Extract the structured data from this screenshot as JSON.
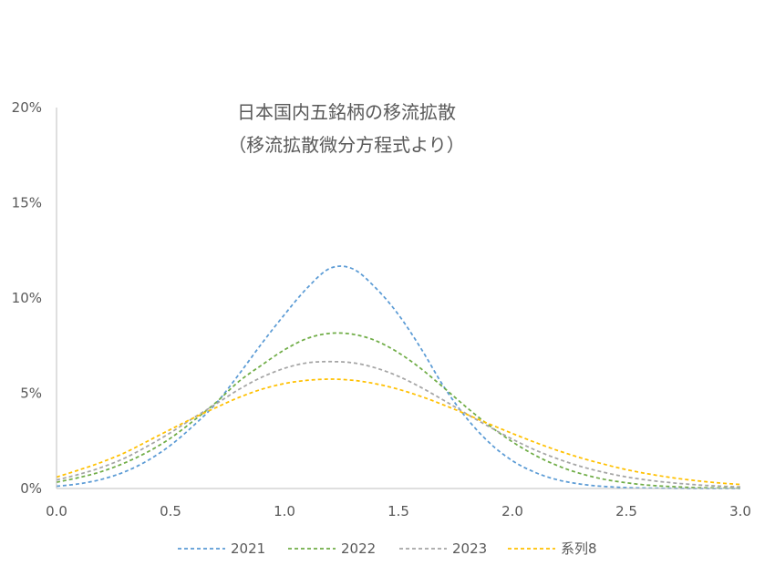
{
  "chart_data": {
    "type": "line",
    "title": "日本国内五銘柄の移流拡散",
    "subtitle": "（移流拡散微分方程式より）",
    "xlabel": "",
    "ylabel": "",
    "xlim": [
      0,
      3
    ],
    "ylim": [
      0,
      0.2
    ],
    "x_ticks": [
      "0.0",
      "0.5",
      "1.0",
      "1.5",
      "2.0",
      "2.5",
      "3.0"
    ],
    "y_ticks": [
      "0%",
      "5%",
      "10%",
      "15%",
      "20%"
    ],
    "grid": false,
    "legend_position": "bottom",
    "x": [
      0.0,
      0.1,
      0.2,
      0.3,
      0.4,
      0.5,
      0.6,
      0.7,
      0.8,
      0.9,
      1.0,
      1.1,
      1.2,
      1.3,
      1.4,
      1.5,
      1.6,
      1.7,
      1.8,
      1.9,
      2.0,
      2.1,
      2.2,
      2.3,
      2.4,
      2.5,
      2.6,
      2.7,
      2.8,
      2.9,
      3.0
    ],
    "series": [
      {
        "name": "2021",
        "color": "#5b9bd5",
        "values": [
          0.0012,
          0.0025,
          0.0049,
          0.0088,
          0.0147,
          0.0227,
          0.0329,
          0.0447,
          0.0599,
          0.0761,
          0.0913,
          0.1053,
          0.1156,
          0.1153,
          0.1053,
          0.0913,
          0.0733,
          0.0533,
          0.0368,
          0.0239,
          0.0146,
          0.0084,
          0.0045,
          0.0023,
          0.0011,
          0.0005,
          0.0002,
          0.0001,
          0.0,
          0.0,
          0.0
        ]
      },
      {
        "name": "2022",
        "color": "#70ad47",
        "values": [
          0.0033,
          0.0058,
          0.009,
          0.0135,
          0.0192,
          0.0264,
          0.0355,
          0.0452,
          0.0562,
          0.0648,
          0.0728,
          0.0788,
          0.0815,
          0.081,
          0.0776,
          0.0713,
          0.0628,
          0.0528,
          0.0425,
          0.0329,
          0.0245,
          0.0174,
          0.0119,
          0.0078,
          0.0049,
          0.003,
          0.0017,
          0.001,
          0.0005,
          0.0003,
          0.0001
        ]
      },
      {
        "name": "2023",
        "color": "#a5a5a5",
        "values": [
          0.0045,
          0.0075,
          0.0112,
          0.016,
          0.0223,
          0.0293,
          0.037,
          0.0444,
          0.052,
          0.0584,
          0.0631,
          0.066,
          0.0666,
          0.066,
          0.0633,
          0.0589,
          0.053,
          0.0462,
          0.0391,
          0.0323,
          0.0259,
          0.0202,
          0.0155,
          0.0116,
          0.0085,
          0.0061,
          0.0043,
          0.003,
          0.002,
          0.0013,
          0.0008
        ]
      },
      {
        "name": "系列8",
        "color": "#ffc000",
        "values": [
          0.006,
          0.0098,
          0.0139,
          0.0188,
          0.0249,
          0.031,
          0.037,
          0.0425,
          0.0478,
          0.0521,
          0.0551,
          0.0568,
          0.0574,
          0.0568,
          0.055,
          0.0521,
          0.0483,
          0.0438,
          0.0389,
          0.0338,
          0.0289,
          0.0242,
          0.0199,
          0.0161,
          0.0128,
          0.0099,
          0.0076,
          0.0057,
          0.0042,
          0.003,
          0.0021
        ]
      }
    ]
  }
}
